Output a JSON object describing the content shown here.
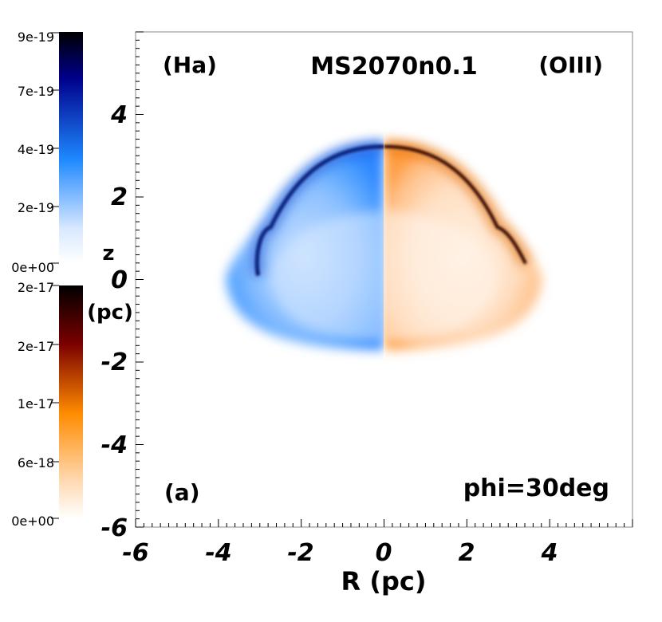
{
  "chart_data": {
    "type": "heatmap",
    "title": "MS2070n0.1",
    "left_panel_label": "(Ha)",
    "right_panel_label": "(OIII)",
    "panel_tag": "(a)",
    "angle_label": "phi=30deg",
    "xlabel": "R (pc)",
    "ylabel_top": "z",
    "ylabel_bottom": "(pc)",
    "xlim": [
      -6,
      6
    ],
    "ylim": [
      -6,
      6
    ],
    "xticks": [
      -6,
      -4,
      -2,
      0,
      2,
      4
    ],
    "yticks": [
      -6,
      -4,
      -2,
      0,
      2,
      4
    ],
    "shell_outline": {
      "apex_z": 3.3,
      "equator_R": 3.8,
      "equator_z": 0.0,
      "bottom_z": -1.7
    },
    "colorbars": [
      {
        "name": "Ha",
        "colors": [
          "#ffffff",
          "#1e88ff",
          "#00008a",
          "#000000"
        ],
        "tick_labels": [
          "9e-19",
          "7e-19",
          "4e-19",
          "2e-19",
          "0e+00"
        ],
        "tick_values": [
          9e-19,
          7e-19,
          4e-19,
          2e-19,
          0
        ]
      },
      {
        "name": "OIII",
        "colors": [
          "#ffffff",
          "#ff8c00",
          "#7a0000",
          "#000000"
        ],
        "tick_labels": [
          "2e-17",
          "2e-17",
          "1e-17",
          "6e-18",
          "0e+00"
        ],
        "tick_values": [
          2e-17,
          1.5e-17,
          1e-17,
          6e-18,
          0
        ]
      }
    ]
  }
}
